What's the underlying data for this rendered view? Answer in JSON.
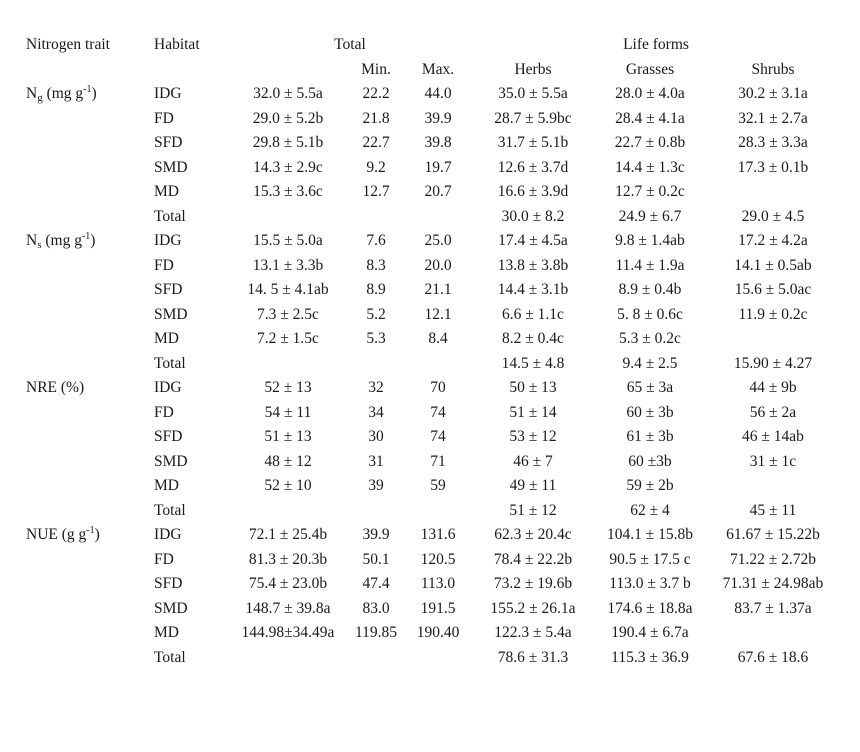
{
  "header": {
    "col_trait": "Nitrogen trait",
    "col_habitat": "Habitat",
    "group_total": "Total",
    "group_life_forms": "Life forms",
    "sub_min": "Min.",
    "sub_max": "Max.",
    "sub_herbs": "Herbs",
    "sub_grasses": "Grasses",
    "sub_shrubs": "Shrubs"
  },
  "groups": [
    {
      "trait_main": "N",
      "trait_sub": "g",
      "trait_unit_pre": " (mg g",
      "trait_sup": "-1",
      "trait_unit_post": ")",
      "rows": [
        {
          "habitat": "IDG",
          "total": "32.0 ± 5.5a",
          "min": "22.2",
          "max": "44.0",
          "herbs": "35.0 ± 5.5a",
          "grasses": "28.0 ± 4.0a",
          "shrubs": "30.2 ± 3.1a"
        },
        {
          "habitat": "FD",
          "total": "29.0 ± 5.2b",
          "min": "21.8",
          "max": "39.9",
          "herbs": "28.7 ± 5.9bc",
          "grasses": "28.4 ± 4.1a",
          "shrubs": "32.1 ± 2.7a"
        },
        {
          "habitat": "SFD",
          "total": "29.8 ± 5.1b",
          "min": "22.7",
          "max": "39.8",
          "herbs": "31.7 ± 5.1b",
          "grasses": "22.7 ± 0.8b",
          "shrubs": "28.3 ± 3.3a"
        },
        {
          "habitat": "SMD",
          "total": "14.3 ± 2.9c",
          "min": "9.2",
          "max": "19.7",
          "herbs": "12.6 ± 3.7d",
          "grasses": "14.4 ± 1.3c",
          "shrubs": "17.3 ± 0.1b"
        },
        {
          "habitat": "MD",
          "total": "15.3 ± 3.6c",
          "min": "12.7",
          "max": "20.7",
          "herbs": "16.6 ± 3.9d",
          "grasses": "12.7 ± 0.2c",
          "shrubs": ""
        },
        {
          "habitat": "Total",
          "total": "",
          "min": "",
          "max": "",
          "herbs": "30.0 ± 8.2",
          "grasses": "24.9 ± 6.7",
          "shrubs": "29.0 ± 4.5"
        }
      ]
    },
    {
      "trait_main": "N",
      "trait_sub": "s",
      "trait_unit_pre": " (mg g",
      "trait_sup": "-1",
      "trait_unit_post": ")",
      "rows": [
        {
          "habitat": "IDG",
          "total": "15.5 ± 5.0a",
          "min": "7.6",
          "max": "25.0",
          "herbs": "17.4 ± 4.5a",
          "grasses": "9.8 ± 1.4ab",
          "shrubs": "17.2 ± 4.2a"
        },
        {
          "habitat": "FD",
          "total": "13.1 ± 3.3b",
          "min": "8.3",
          "max": "20.0",
          "herbs": "13.8 ± 3.8b",
          "grasses": "11.4 ± 1.9a",
          "shrubs": "14.1 ± 0.5ab"
        },
        {
          "habitat": "SFD",
          "total": "14. 5 ± 4.1ab",
          "min": "8.9",
          "max": "21.1",
          "herbs": "14.4 ± 3.1b",
          "grasses": "8.9 ± 0.4b",
          "shrubs": "15.6 ± 5.0ac"
        },
        {
          "habitat": "SMD",
          "total": "7.3 ± 2.5c",
          "min": "5.2",
          "max": "12.1",
          "herbs": "6.6 ± 1.1c",
          "grasses": "5. 8 ± 0.6c",
          "shrubs": "11.9 ± 0.2c"
        },
        {
          "habitat": "MD",
          "total": "7.2 ± 1.5c",
          "min": "5.3",
          "max": "8.4",
          "herbs": "8.2 ± 0.4c",
          "grasses": "5.3 ± 0.2c",
          "shrubs": ""
        },
        {
          "habitat": "Total",
          "total": "",
          "min": "",
          "max": "",
          "herbs": "14.5 ± 4.8",
          "grasses": "9.4 ± 2.5",
          "shrubs": "15.90 ± 4.27"
        }
      ]
    },
    {
      "trait_main": "NRE (%)",
      "trait_sub": "",
      "trait_unit_pre": "",
      "trait_sup": "",
      "trait_unit_post": "",
      "rows": [
        {
          "habitat": "IDG",
          "total": "52 ± 13",
          "min": "32",
          "max": "70",
          "herbs": "50 ± 13",
          "grasses": "65 ± 3a",
          "shrubs": "44 ± 9b"
        },
        {
          "habitat": "FD",
          "total": "54 ± 11",
          "min": "34",
          "max": "74",
          "herbs": "51 ± 14",
          "grasses": "60 ± 3b",
          "shrubs": "56 ± 2a"
        },
        {
          "habitat": "SFD",
          "total": "51 ± 13",
          "min": "30",
          "max": "74",
          "herbs": "53 ± 12",
          "grasses": "61 ± 3b",
          "shrubs": "46 ± 14ab"
        },
        {
          "habitat": "SMD",
          "total": "48 ± 12",
          "min": "31",
          "max": "71",
          "herbs": "46 ± 7",
          "grasses": "60 ±3b",
          "shrubs": "31 ± 1c"
        },
        {
          "habitat": "MD",
          "total": "52 ± 10",
          "min": "39",
          "max": "59",
          "herbs": "49 ± 11",
          "grasses": "59 ± 2b",
          "shrubs": ""
        },
        {
          "habitat": "Total",
          "total": "",
          "min": "",
          "max": "",
          "herbs": "51 ± 12",
          "grasses": "62 ± 4",
          "shrubs": "45 ± 11"
        }
      ]
    },
    {
      "trait_main": "NUE (g g",
      "trait_sub": "",
      "trait_unit_pre": "",
      "trait_sup": "-1",
      "trait_unit_post": ")",
      "rows": [
        {
          "habitat": "IDG",
          "total": "72.1 ± 25.4b",
          "min": "39.9",
          "max": "131.6",
          "herbs": "62.3 ± 20.4c",
          "grasses": "104.1 ± 15.8b",
          "shrubs": "61.67 ± 15.22b"
        },
        {
          "habitat": "FD",
          "total": "81.3 ± 20.3b",
          "min": "50.1",
          "max": "120.5",
          "herbs": "78.4 ± 22.2b",
          "grasses": "90.5 ± 17.5 c",
          "shrubs": "71.22 ± 2.72b"
        },
        {
          "habitat": "SFD",
          "total": "75.4 ± 23.0b",
          "min": "47.4",
          "max": "113.0",
          "herbs": "73.2 ± 19.6b",
          "grasses": "113.0 ± 3.7 b",
          "shrubs": "71.31 ± 24.98ab"
        },
        {
          "habitat": "SMD",
          "total": "148.7 ± 39.8a",
          "min": "83.0",
          "max": "191.5",
          "herbs": "155.2 ± 26.1a",
          "grasses": "174.6 ± 18.8a",
          "shrubs": "83.7 ± 1.37a"
        },
        {
          "habitat": "MD",
          "total": "144.98±34.49a",
          "min": "119.85",
          "max": "190.40",
          "herbs": "122.3 ± 5.4a",
          "grasses": "190.4 ± 6.7a",
          "shrubs": ""
        },
        {
          "habitat": "Total",
          "total": "",
          "min": "",
          "max": "",
          "herbs": "78.6 ± 31.3",
          "grasses": "115.3 ± 36.9",
          "shrubs": "67.6 ± 18.6"
        }
      ]
    }
  ]
}
